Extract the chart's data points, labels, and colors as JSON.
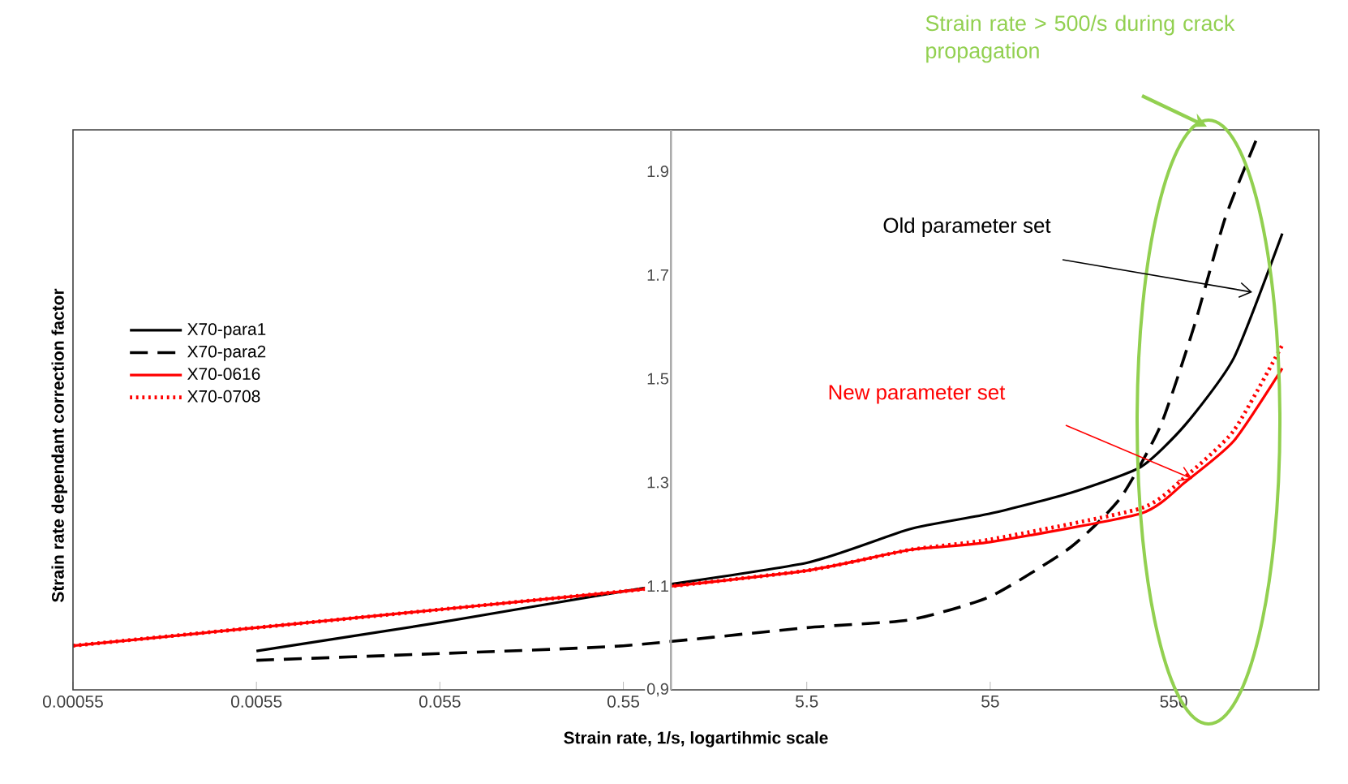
{
  "chart_data": {
    "type": "line",
    "xlabel": "Strain rate, 1/s, logartihmic scale",
    "ylabel": "Strain rate dependant correction factor",
    "log": "x",
    "xlim": [
      0.00055,
      3400
    ],
    "ylim": [
      0.9,
      1.98
    ],
    "xticks": [
      {
        "value": 0.00055,
        "label": "0.00055"
      },
      {
        "value": 0.0055,
        "label": "0.0055"
      },
      {
        "value": 0.055,
        "label": "0.055"
      },
      {
        "value": 0.55,
        "label": "0.55"
      },
      {
        "value": 5.5,
        "label": "5.5"
      },
      {
        "value": 55,
        "label": "55"
      },
      {
        "value": 550,
        "label": "550"
      }
    ],
    "yticks": [
      {
        "value": 0.9,
        "label": "0,9"
      },
      1.1,
      1.3,
      1.5,
      1.7,
      1.9
    ],
    "legend": "left",
    "series": [
      {
        "name": "X70-para1",
        "color": "#000000",
        "line_style": "solid",
        "x": [
          0.0055,
          0.055,
          0.55,
          5.5,
          20,
          55,
          151,
          364,
          632,
          1170,
          2150
        ],
        "values": [
          0.975,
          1.03,
          1.09,
          1.145,
          1.21,
          1.24,
          1.28,
          1.33,
          1.41,
          1.54,
          1.78
        ]
      },
      {
        "name": "X70-para2",
        "color": "#000000",
        "line_style": "dashed",
        "x": [
          0.0055,
          0.055,
          0.55,
          5.5,
          20,
          55,
          151,
          282,
          467,
          709,
          1050,
          1590
        ],
        "values": [
          0.957,
          0.97,
          0.985,
          1.02,
          1.035,
          1.08,
          1.175,
          1.27,
          1.41,
          1.6,
          1.81,
          1.97
        ]
      },
      {
        "name": "X70-0616",
        "color": "#ff0000",
        "line_style": "solid",
        "x": [
          0.00055,
          0.0055,
          0.055,
          0.55,
          5.5,
          20,
          55,
          364,
          632,
          1170,
          2150
        ],
        "values": [
          0.985,
          1.02,
          1.055,
          1.09,
          1.13,
          1.17,
          1.185,
          1.24,
          1.3,
          1.38,
          1.52
        ]
      },
      {
        "name": "X70-0708",
        "color": "#ff0000",
        "line_style": "dotted",
        "x": [
          0.00055,
          0.0055,
          0.055,
          0.55,
          5.5,
          20,
          55,
          364,
          632,
          1170,
          2150
        ],
        "values": [
          0.985,
          1.02,
          1.055,
          1.09,
          1.13,
          1.17,
          1.19,
          1.25,
          1.31,
          1.4,
          1.565
        ]
      }
    ],
    "annotations": [
      "Strain rate > 500/s during crack propagation",
      "Old parameter set",
      "New parameter set"
    ]
  }
}
